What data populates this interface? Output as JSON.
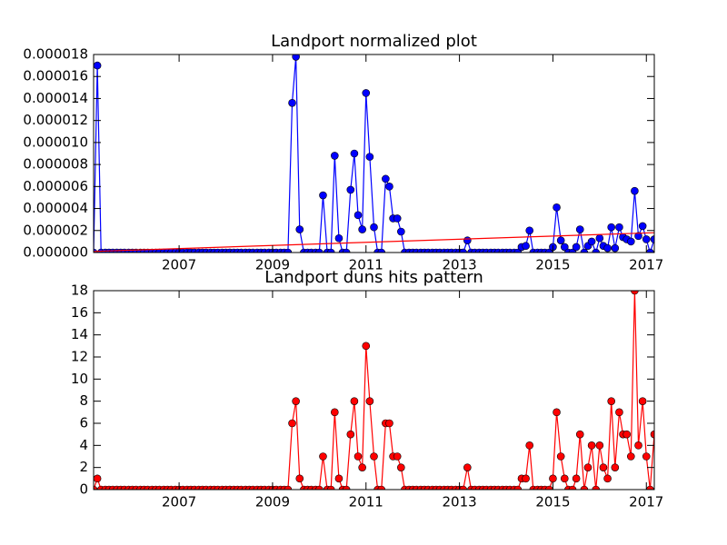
{
  "chart_data": [
    {
      "type": "line",
      "title": "Landport normalized plot",
      "x": [
        2005.17,
        2005.25,
        2005.33,
        2005.42,
        2005.5,
        2005.58,
        2005.67,
        2005.75,
        2005.83,
        2005.92,
        2006,
        2006.08,
        2006.17,
        2006.25,
        2006.33,
        2006.42,
        2006.5,
        2006.58,
        2006.67,
        2006.75,
        2006.83,
        2006.92,
        2007,
        2007.08,
        2007.17,
        2007.25,
        2007.33,
        2007.42,
        2007.5,
        2007.58,
        2007.67,
        2007.75,
        2007.83,
        2007.92,
        2008,
        2008.08,
        2008.17,
        2008.25,
        2008.33,
        2008.42,
        2008.5,
        2008.58,
        2008.67,
        2008.75,
        2008.83,
        2008.92,
        2009,
        2009.08,
        2009.17,
        2009.25,
        2009.33,
        2009.42,
        2009.5,
        2009.58,
        2009.67,
        2009.75,
        2009.83,
        2009.92,
        2010,
        2010.08,
        2010.17,
        2010.25,
        2010.33,
        2010.42,
        2010.5,
        2010.58,
        2010.67,
        2010.75,
        2010.83,
        2010.92,
        2011,
        2011.08,
        2011.17,
        2011.25,
        2011.33,
        2011.42,
        2011.5,
        2011.58,
        2011.67,
        2011.75,
        2011.83,
        2011.92,
        2012,
        2012.08,
        2012.17,
        2012.25,
        2012.33,
        2012.42,
        2012.5,
        2012.58,
        2012.67,
        2012.75,
        2012.83,
        2012.92,
        2013,
        2013.08,
        2013.17,
        2013.25,
        2013.33,
        2013.42,
        2013.5,
        2013.58,
        2013.67,
        2013.75,
        2013.83,
        2013.92,
        2014,
        2014.08,
        2014.17,
        2014.25,
        2014.33,
        2014.42,
        2014.5,
        2014.58,
        2014.67,
        2014.75,
        2014.83,
        2014.92,
        2015,
        2015.08,
        2015.17,
        2015.25,
        2015.33,
        2015.42,
        2015.5,
        2015.58,
        2015.67,
        2015.75,
        2015.83,
        2015.92,
        2016,
        2016.08,
        2016.17,
        2016.25,
        2016.33,
        2016.42,
        2016.5,
        2016.58,
        2016.67,
        2016.75,
        2016.83,
        2016.92,
        2017,
        2017.08,
        2017.17
      ],
      "series": [
        {
          "color": "#0000ff",
          "marker": true,
          "values": [
            0,
            1.7e-05,
            0,
            0,
            0,
            0,
            0,
            0,
            0,
            0,
            0,
            0,
            0,
            0,
            0,
            0,
            0,
            0,
            0,
            0,
            0,
            0,
            0,
            0,
            0,
            0,
            0,
            0,
            0,
            0,
            0,
            0,
            0,
            0,
            0,
            0,
            0,
            0,
            0,
            0,
            0,
            0,
            0,
            0,
            0,
            0,
            0,
            0,
            0,
            0,
            0,
            1.36e-05,
            1.78e-05,
            2.1e-06,
            0,
            0,
            0,
            0,
            0,
            5.2e-06,
            0,
            0,
            8.8e-06,
            1.3e-06,
            0,
            0,
            5.7e-06,
            9e-06,
            3.4e-06,
            2.1e-06,
            1.45e-05,
            8.7e-06,
            2.3e-06,
            0,
            0,
            6.7e-06,
            6e-06,
            3.1e-06,
            3.1e-06,
            1.9e-06,
            0,
            0,
            0,
            0,
            0,
            0,
            0,
            0,
            0,
            0,
            0,
            0,
            0,
            0,
            0,
            0,
            1.1e-06,
            0,
            0,
            0,
            0,
            0,
            0,
            0,
            0,
            0,
            0,
            0,
            0,
            0,
            5e-07,
            6e-07,
            2e-06,
            0,
            0,
            0,
            0,
            0,
            5e-07,
            4.1e-06,
            1.1e-06,
            5e-07,
            0,
            0,
            5e-07,
            2.1e-06,
            0,
            6e-07,
            1e-06,
            0,
            1.3e-06,
            6e-07,
            4e-07,
            2.3e-06,
            4e-07,
            2.3e-06,
            1.4e-06,
            1.2e-06,
            1e-06,
            5.6e-06,
            1.5e-06,
            2.4e-06,
            1.2e-06,
            0,
            1.2e-06
          ]
        },
        {
          "color": "#ff0000",
          "marker": false,
          "x": [
            2005.17,
            2017.17
          ],
          "values": [
            1e-07,
            1.8e-06
          ]
        }
      ],
      "xlim": [
        2005.17,
        2017.17
      ],
      "ylim": [
        0,
        1.8e-05
      ],
      "xticks": [
        2007,
        2009,
        2011,
        2013,
        2015,
        2017
      ],
      "yticks": [
        {
          "value": 0,
          "label": "0.000000"
        },
        {
          "value": 2e-06,
          "label": "0.000002"
        },
        {
          "value": 4e-06,
          "label": "0.000004"
        },
        {
          "value": 6e-06,
          "label": "0.000006"
        },
        {
          "value": 8e-06,
          "label": "0.000008"
        },
        {
          "value": 1e-05,
          "label": "0.000010"
        },
        {
          "value": 1.2e-05,
          "label": "0.000012"
        },
        {
          "value": 1.4e-05,
          "label": "0.000014"
        },
        {
          "value": 1.6e-05,
          "label": "0.000016"
        },
        {
          "value": 1.8e-05,
          "label": "0.000018"
        }
      ]
    },
    {
      "type": "line",
      "title": "Landport duns hits pattern",
      "x": [
        2005.17,
        2005.25,
        2005.33,
        2005.42,
        2005.5,
        2005.58,
        2005.67,
        2005.75,
        2005.83,
        2005.92,
        2006,
        2006.08,
        2006.17,
        2006.25,
        2006.33,
        2006.42,
        2006.5,
        2006.58,
        2006.67,
        2006.75,
        2006.83,
        2006.92,
        2007,
        2007.08,
        2007.17,
        2007.25,
        2007.33,
        2007.42,
        2007.5,
        2007.58,
        2007.67,
        2007.75,
        2007.83,
        2007.92,
        2008,
        2008.08,
        2008.17,
        2008.25,
        2008.33,
        2008.42,
        2008.5,
        2008.58,
        2008.67,
        2008.75,
        2008.83,
        2008.92,
        2009,
        2009.08,
        2009.17,
        2009.25,
        2009.33,
        2009.42,
        2009.5,
        2009.58,
        2009.67,
        2009.75,
        2009.83,
        2009.92,
        2010,
        2010.08,
        2010.17,
        2010.25,
        2010.33,
        2010.42,
        2010.5,
        2010.58,
        2010.67,
        2010.75,
        2010.83,
        2010.92,
        2011,
        2011.08,
        2011.17,
        2011.25,
        2011.33,
        2011.42,
        2011.5,
        2011.58,
        2011.67,
        2011.75,
        2011.83,
        2011.92,
        2012,
        2012.08,
        2012.17,
        2012.25,
        2012.33,
        2012.42,
        2012.5,
        2012.58,
        2012.67,
        2012.75,
        2012.83,
        2012.92,
        2013,
        2013.08,
        2013.17,
        2013.25,
        2013.33,
        2013.42,
        2013.5,
        2013.58,
        2013.67,
        2013.75,
        2013.83,
        2013.92,
        2014,
        2014.08,
        2014.17,
        2014.25,
        2014.33,
        2014.42,
        2014.5,
        2014.58,
        2014.67,
        2014.75,
        2014.83,
        2014.92,
        2015,
        2015.08,
        2015.17,
        2015.25,
        2015.33,
        2015.42,
        2015.5,
        2015.58,
        2015.67,
        2015.75,
        2015.83,
        2015.92,
        2016,
        2016.08,
        2016.17,
        2016.25,
        2016.33,
        2016.42,
        2016.5,
        2016.58,
        2016.67,
        2016.75,
        2016.83,
        2016.92,
        2017,
        2017.08,
        2017.17
      ],
      "series": [
        {
          "color": "#ff0000",
          "marker": true,
          "values": [
            0,
            1,
            0,
            0,
            0,
            0,
            0,
            0,
            0,
            0,
            0,
            0,
            0,
            0,
            0,
            0,
            0,
            0,
            0,
            0,
            0,
            0,
            0,
            0,
            0,
            0,
            0,
            0,
            0,
            0,
            0,
            0,
            0,
            0,
            0,
            0,
            0,
            0,
            0,
            0,
            0,
            0,
            0,
            0,
            0,
            0,
            0,
            0,
            0,
            0,
            0,
            6,
            8,
            1,
            0,
            0,
            0,
            0,
            0,
            3,
            0,
            0,
            7,
            1,
            0,
            0,
            5,
            8,
            3,
            2,
            13,
            8,
            3,
            0,
            0,
            6,
            6,
            3,
            3,
            2,
            0,
            0,
            0,
            0,
            0,
            0,
            0,
            0,
            0,
            0,
            0,
            0,
            0,
            0,
            0,
            0,
            2,
            0,
            0,
            0,
            0,
            0,
            0,
            0,
            0,
            0,
            0,
            0,
            0,
            0,
            1,
            1,
            4,
            0,
            0,
            0,
            0,
            0,
            1,
            7,
            3,
            1,
            0,
            0,
            1,
            5,
            0,
            2,
            4,
            0,
            4,
            2,
            1,
            8,
            2,
            7,
            5,
            5,
            3,
            18,
            4,
            8,
            3,
            0,
            5
          ]
        }
      ],
      "xlim": [
        2005.17,
        2017.17
      ],
      "ylim": [
        0,
        18
      ],
      "xticks": [
        2007,
        2009,
        2011,
        2013,
        2015,
        2017
      ],
      "yticks": [
        0,
        2,
        4,
        6,
        8,
        10,
        12,
        14,
        16,
        18
      ]
    }
  ]
}
